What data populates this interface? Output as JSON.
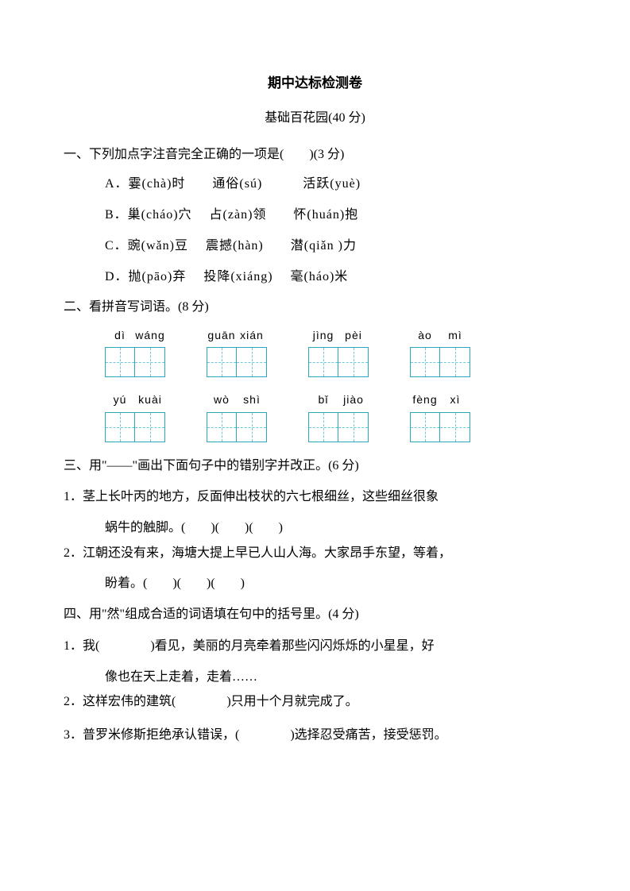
{
  "title": "期中达标检测卷",
  "subtitle": "基础百花园(40 分)",
  "q1": {
    "header": "一、下列加点字注音完全正确的一项是(　　)(3 分)",
    "optA": "A．霎(chà)时　　通俗(sú)　　　活跃(yuè)",
    "optB": "B．巢(cháo)穴　 占(zàn)领　　怀(huán)抱",
    "optC": "C．豌(wǎn)豆　 震撼(hàn)　　潜(qiǎn )力",
    "optD": "D．抛(pāo)弃　 投降(xiáng)　 毫(háo)米"
  },
  "q2": {
    "header": "二、看拼音写词语。(8 分)",
    "row1": [
      {
        "s1": "dì",
        "s2": "wáng"
      },
      {
        "s1": "guān",
        "s2": "xián"
      },
      {
        "s1": "jìng",
        "s2": "pèi"
      },
      {
        "s1": "ào",
        "s2": "mì"
      }
    ],
    "row2": [
      {
        "s1": "yú",
        "s2": "kuài"
      },
      {
        "s1": "wò",
        "s2": "shì"
      },
      {
        "s1": "bǐ",
        "s2": "jiào"
      },
      {
        "s1": "fèng",
        "s2": "xì"
      }
    ]
  },
  "q3": {
    "header": "三、用\"——\"画出下面句子中的错别字并改正。(6 分)",
    "item1a": "1．茎上长叶丙的地方，反面伸出枝状的六七根细丝，这些细丝很象",
    "item1b": "蜗牛的触脚。(　　)(　　)(　　)",
    "item2a": "2．江朝还没有来，海塘大提上早已人山人海。大家昂手东望，等着，",
    "item2b": "盼着。(　　)(　　)(　　)"
  },
  "q4": {
    "header": "四、用\"然\"组成合适的词语填在句中的括号里。(4 分)",
    "item1a": "1．我(　　　　)看见，美丽的月亮牵着那些闪闪烁烁的小星星，好",
    "item1b": "像也在天上走着，走着……",
    "item2": "2．这样宏伟的建筑(　　　　)只用十个月就完成了。",
    "item3": "3．普罗米修斯拒绝承认错误，(　　　　)选择忍受痛苦，接受惩罚。"
  }
}
